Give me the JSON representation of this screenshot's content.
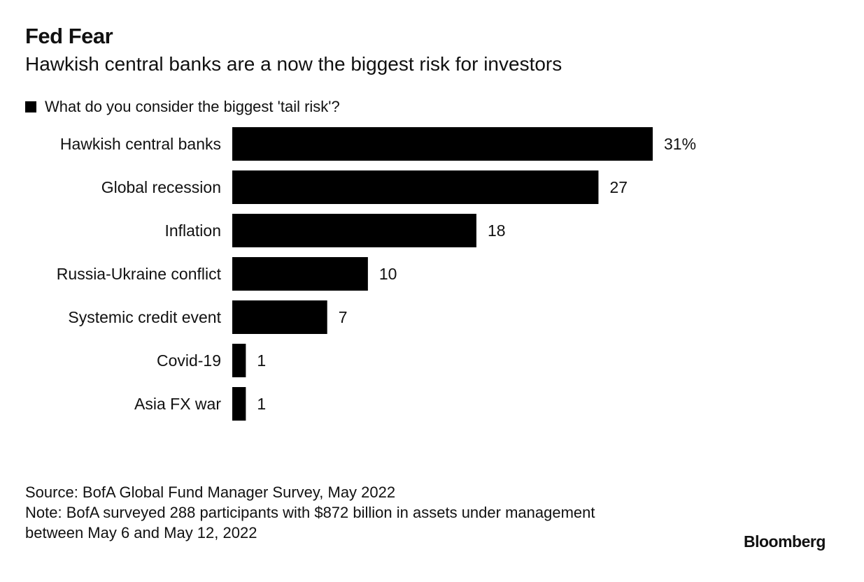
{
  "title": "Fed Fear",
  "subtitle": "Hawkish central banks are a now the biggest risk for investors",
  "legend": {
    "label": "What do you consider the biggest 'tail risk'?",
    "color": "#000000"
  },
  "chart_data": {
    "type": "bar",
    "orientation": "horizontal",
    "categories": [
      "Hawkish central banks",
      "Global recession",
      "Inflation",
      "Russia-Ukraine conflict",
      "Systemic credit event",
      "Covid-19",
      "Asia FX war"
    ],
    "series": [
      {
        "name": "What do you consider the biggest 'tail risk'?",
        "values": [
          31,
          27,
          18,
          10,
          7,
          1,
          1
        ]
      }
    ],
    "value_labels": [
      "31%",
      "27",
      "18",
      "10",
      "7",
      "1",
      "1"
    ],
    "xlim": [
      0,
      31
    ],
    "grid": false,
    "bar_color": "#000000"
  },
  "footer": {
    "source": "Source: BofA Global Fund Manager Survey, May 2022",
    "note_line1": "Note: BofA surveyed 288 participants with $872 billion in assets under management",
    "note_line2": "between May 6 and May 12, 2022"
  },
  "brand": "Bloomberg"
}
